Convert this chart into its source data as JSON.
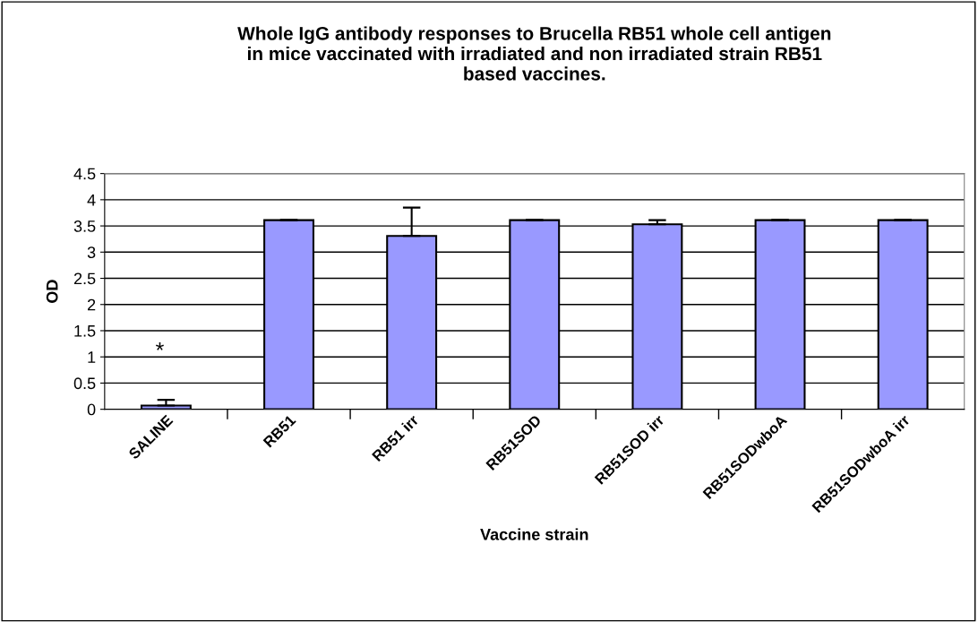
{
  "chart_data": {
    "type": "bar",
    "title": "Whole IgG antibody responses to Brucella RB51 whole cell antigen\nin mice vaccinated with irradiated and non irradiated strain RB51\nbased vaccines.",
    "xlabel": "Vaccine strain",
    "ylabel": "OD",
    "categories": [
      "SALINE",
      "RB51",
      "RB51 irr",
      "RB51SOD",
      "RB51SOD irr",
      "RB51SODwboA",
      "RB51SODwboA irr"
    ],
    "values": [
      0.07,
      3.61,
      3.31,
      3.61,
      3.53,
      3.61,
      3.61
    ],
    "errors": [
      0.11,
      0,
      0.54,
      0,
      0.08,
      0,
      0
    ],
    "color": "#9999ff",
    "ylim": [
      0,
      4.5
    ],
    "yticks": [
      0,
      0.5,
      1,
      1.5,
      2,
      2.5,
      3,
      3.5,
      4,
      4.5
    ],
    "grid": "y",
    "annotations": [
      "*"
    ]
  }
}
